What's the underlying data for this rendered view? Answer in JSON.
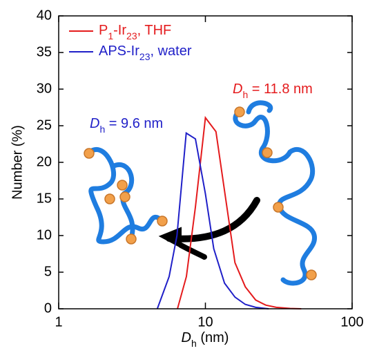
{
  "chart_data": {
    "type": "line",
    "x_label": "Dh (nm)",
    "y_label": "Number (%)",
    "xlim": [
      1,
      100
    ],
    "ylim": [
      0,
      40
    ],
    "log_x": true,
    "xticks": [
      1,
      10,
      100
    ],
    "yticks": [
      0,
      5,
      10,
      15,
      20,
      25,
      30,
      35,
      40
    ],
    "legend": "upper left",
    "series": [
      {
        "name": "P1-Ir23, THF",
        "color": "#e41a1c",
        "x": [
          6.45,
          7.42,
          8.55,
          10,
          11.8,
          13.8,
          15.9,
          18.7,
          22,
          25.8,
          30.4,
          37.8,
          45
        ],
        "values": [
          0,
          4.4,
          13.9,
          26.1,
          24.2,
          14.8,
          6.3,
          3,
          1.2,
          0.5,
          0.2,
          0.05,
          0
        ]
      },
      {
        "name": "APS-Ir23, water",
        "color": "#1f1fc8",
        "x": [
          4.7,
          5.66,
          6.4,
          7.4,
          8.55,
          10,
          11.4,
          13.5,
          15.9,
          18.7,
          22,
          27
        ],
        "values": [
          0,
          4.4,
          10,
          24,
          23.2,
          15.7,
          8.2,
          3.5,
          1.6,
          0.6,
          0.2,
          0
        ]
      }
    ],
    "annotations": [
      {
        "text": "Dh = 11.8 nm",
        "color": "#e41a1c"
      },
      {
        "text": "Dh = 9.6 nm",
        "color": "#1f1fc8"
      }
    ]
  }
}
